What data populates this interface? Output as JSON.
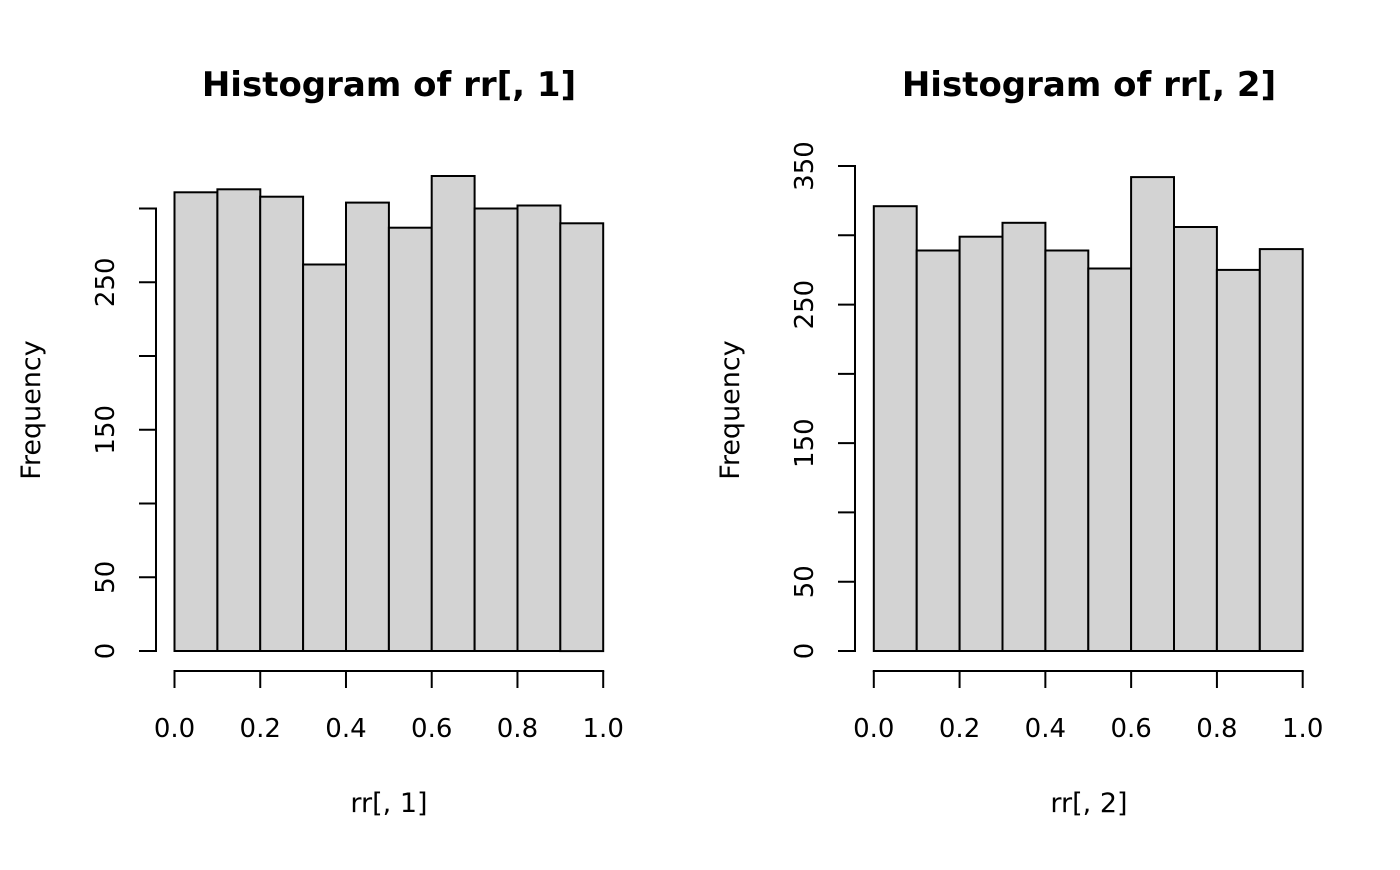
{
  "figure": {
    "background": "#ffffff",
    "foreground": "#000000"
  },
  "chart_data": [
    {
      "type": "bar",
      "subtype": "histogram",
      "title": "Histogram of rr[, 1]",
      "xlabel": "rr[, 1]",
      "ylabel": "Frequency",
      "breaks": [
        0.0,
        0.1,
        0.2,
        0.3,
        0.4,
        0.5,
        0.6,
        0.7,
        0.8,
        0.9,
        1.0
      ],
      "counts": [
        311,
        313,
        308,
        262,
        304,
        287,
        322,
        300,
        302,
        290
      ],
      "xlim": [
        0.0,
        1.0
      ],
      "ylim": [
        0,
        300
      ],
      "xticks": [
        0.0,
        0.2,
        0.4,
        0.6,
        0.8,
        1.0
      ],
      "xtick_labels": [
        "0.0",
        "0.2",
        "0.4",
        "0.6",
        "0.8",
        "1.0"
      ],
      "yticks": [
        0,
        50,
        100,
        150,
        200,
        250,
        300
      ],
      "ytick_labels": [
        "0",
        "50",
        "",
        "150",
        "",
        "250",
        ""
      ],
      "grid": false,
      "legend": "none",
      "bar_fill": "#d3d3d3",
      "bar_stroke": "#000000"
    },
    {
      "type": "bar",
      "subtype": "histogram",
      "title": "Histogram of rr[, 2]",
      "xlabel": "rr[, 2]",
      "ylabel": "Frequency",
      "breaks": [
        0.0,
        0.1,
        0.2,
        0.3,
        0.4,
        0.5,
        0.6,
        0.7,
        0.8,
        0.9,
        1.0
      ],
      "counts": [
        321,
        289,
        299,
        309,
        289,
        276,
        342,
        306,
        275,
        290
      ],
      "xlim": [
        0.0,
        1.0
      ],
      "ylim": [
        0,
        350
      ],
      "xticks": [
        0.0,
        0.2,
        0.4,
        0.6,
        0.8,
        1.0
      ],
      "xtick_labels": [
        "0.0",
        "0.2",
        "0.4",
        "0.6",
        "0.8",
        "1.0"
      ],
      "yticks": [
        0,
        50,
        100,
        150,
        200,
        250,
        300,
        350
      ],
      "ytick_labels": [
        "0",
        "50",
        "",
        "150",
        "",
        "250",
        "",
        "350"
      ],
      "grid": false,
      "legend": "none",
      "bar_fill": "#d3d3d3",
      "bar_stroke": "#000000"
    }
  ]
}
